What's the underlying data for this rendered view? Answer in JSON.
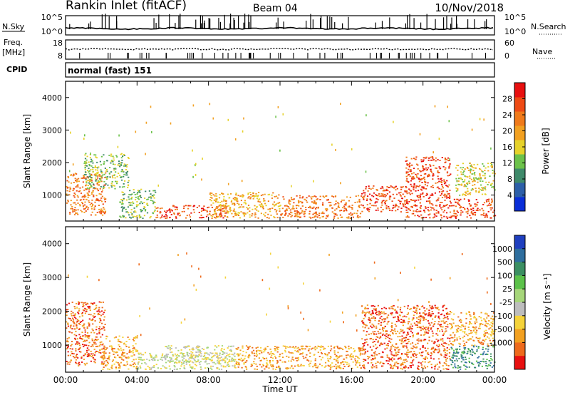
{
  "header": {
    "title": "Rankin Inlet (fitACF)",
    "beam": "Beam 04",
    "date": "10/Nov/2018"
  },
  "top_panels": {
    "nsky_label": "N.Sky",
    "nsky_ticks": [
      "10^5",
      "10^0"
    ],
    "nsearch_label": "N.Search",
    "nsearch_ticks": [
      "10^5",
      "10^0"
    ],
    "freq_label": "Freq.",
    "freq_unit": "[MHz]",
    "freq_ticks": [
      "18",
      "8"
    ],
    "nave_label": "Nave",
    "nave_ticks": [
      "60",
      "0"
    ],
    "cpid_label": "CPID",
    "cpid_value": "normal (fast) 151"
  },
  "chart_data": [
    {
      "type": "heatmap",
      "name": "power",
      "ylabel": "Slant Range [km]",
      "yticks": [
        "1000",
        "2000",
        "3000",
        "4000"
      ],
      "ylim": [
        200,
        4500
      ],
      "xlim_hours": [
        0,
        24
      ],
      "colorbar_label": "Power [dB]",
      "colorbar_ticks": [
        "4",
        "8",
        "12",
        "16",
        "20",
        "24",
        "28"
      ],
      "colorbar_colors": [
        "#0a2ed8",
        "#2d5fa8",
        "#3f8a6a",
        "#6cc24a",
        "#e6d22a",
        "#f2a020",
        "#f07a1a",
        "#ee4a14",
        "#e81010"
      ],
      "echo_regions": [
        {
          "t0": 0.0,
          "t1": 2.2,
          "r0": 400,
          "r1": 1700,
          "level": 24
        },
        {
          "t0": 1.0,
          "t1": 3.5,
          "r0": 1200,
          "r1": 2300,
          "level": 12
        },
        {
          "t0": 3.0,
          "t1": 5.0,
          "r0": 300,
          "r1": 1200,
          "level": 12
        },
        {
          "t0": 5.0,
          "t1": 9.0,
          "r0": 300,
          "r1": 700,
          "level": 28
        },
        {
          "t0": 8.0,
          "t1": 12.0,
          "r0": 300,
          "r1": 1100,
          "level": 18
        },
        {
          "t0": 12.0,
          "t1": 16.5,
          "r0": 300,
          "r1": 1000,
          "level": 22
        },
        {
          "t0": 16.5,
          "t1": 19.0,
          "r0": 500,
          "r1": 1300,
          "level": 28
        },
        {
          "t0": 19.0,
          "t1": 21.5,
          "r0": 300,
          "r1": 2200,
          "level": 26
        },
        {
          "t0": 21.5,
          "t1": 24.0,
          "r0": 300,
          "r1": 900,
          "level": 28
        },
        {
          "t0": 21.8,
          "t1": 24.0,
          "r0": 1000,
          "r1": 2000,
          "level": 16
        }
      ]
    },
    {
      "type": "heatmap",
      "name": "velocity",
      "ylabel": "Slant Range [km]",
      "yticks": [
        "1000",
        "2000",
        "3000",
        "4000"
      ],
      "ylim": [
        200,
        4500
      ],
      "xlim_hours": [
        0,
        24
      ],
      "xticks": [
        "00:00",
        "04:00",
        "08:00",
        "12:00",
        "16:00",
        "20:00",
        "00:00"
      ],
      "xlabel": "Time UT",
      "colorbar_label": "Velocity [m s⁻¹]",
      "colorbar_ticks": [
        "1000",
        "500",
        "100",
        "25",
        "-25",
        "-100",
        "-500",
        "-1000"
      ],
      "colorbar_colors": [
        "#1f3fbf",
        "#2e6e9e",
        "#3b8f62",
        "#5cc24a",
        "#a6d67a",
        "#bdbdbd",
        "#f5d33a",
        "#f2a020",
        "#ee6a1c",
        "#e81010"
      ],
      "echo_regions": [
        {
          "t0": 0.0,
          "t1": 2.2,
          "r0": 400,
          "r1": 2300,
          "value": -300
        },
        {
          "t0": 2.0,
          "t1": 4.0,
          "r0": 300,
          "r1": 1300,
          "value": -150
        },
        {
          "t0": 4.0,
          "t1": 9.5,
          "r0": 300,
          "r1": 800,
          "value": 0
        },
        {
          "t0": 5.5,
          "t1": 9.5,
          "r0": 500,
          "r1": 1000,
          "value": 20
        },
        {
          "t0": 9.5,
          "t1": 16.5,
          "r0": 300,
          "r1": 1000,
          "value": -200
        },
        {
          "t0": 16.5,
          "t1": 21.5,
          "r0": 300,
          "r1": 2200,
          "value": -400
        },
        {
          "t0": 21.5,
          "t1": 24.0,
          "r0": 300,
          "r1": 1000,
          "value": 150
        },
        {
          "t0": 21.5,
          "t1": 24.0,
          "r0": 1000,
          "r1": 2000,
          "value": -120
        }
      ]
    }
  ]
}
